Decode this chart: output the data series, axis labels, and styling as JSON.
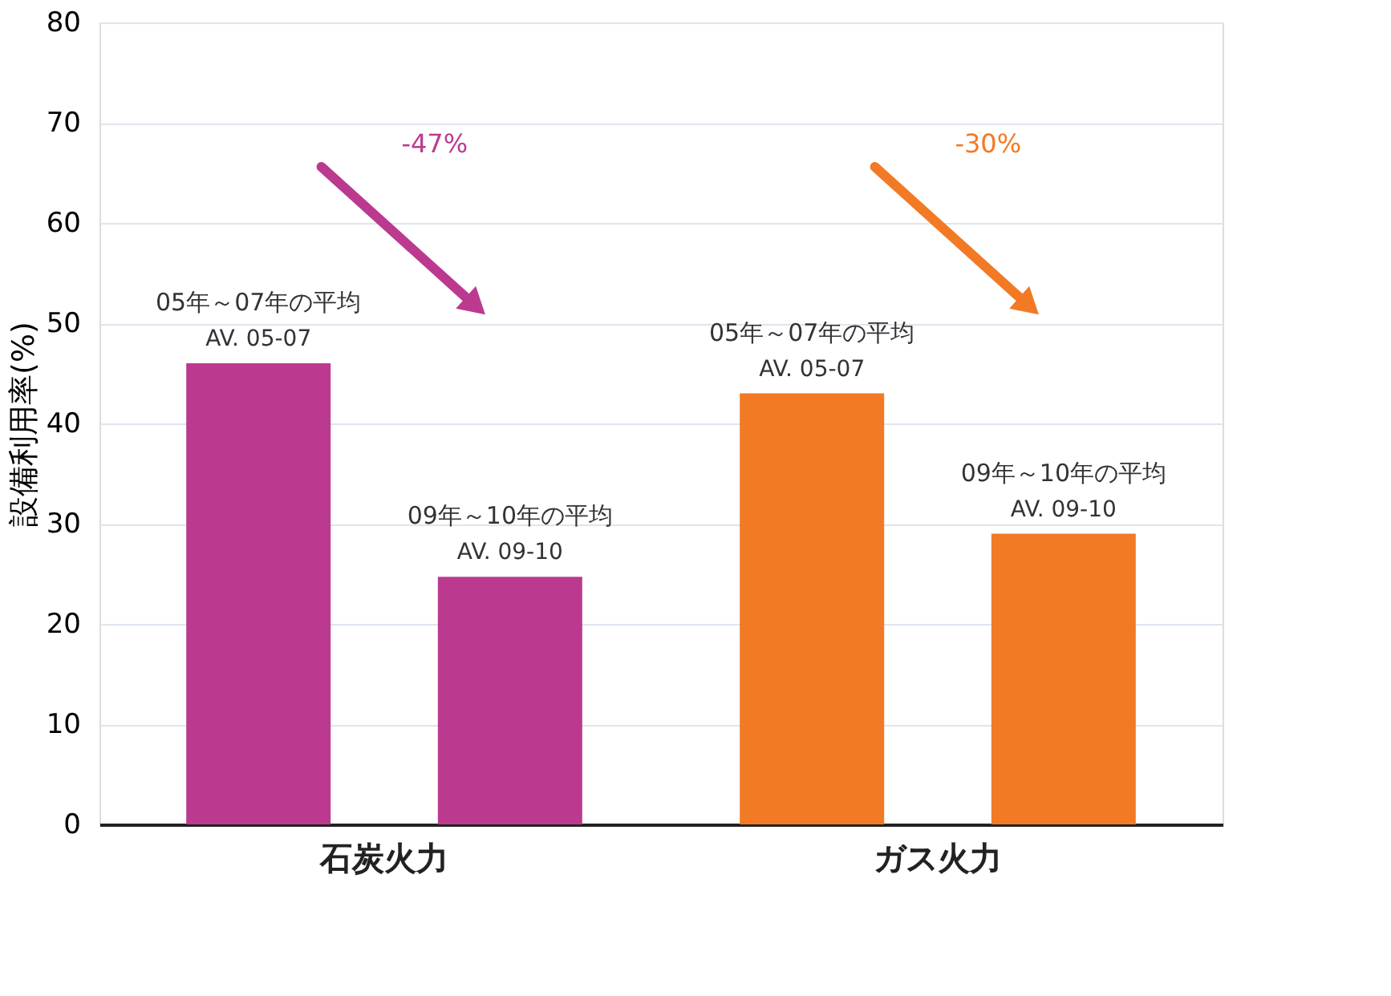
{
  "chart_data": {
    "type": "bar",
    "ylabel": "設備利用率(%)",
    "categories": [
      "石炭火力",
      "ガス火力"
    ],
    "series": [
      {
        "name": "AV. 05-07",
        "colors": [
          "#bb3a8f",
          "#f27a25"
        ],
        "values": [
          46,
          43
        ]
      },
      {
        "name": "AV. 09-10",
        "colors": [
          "#bb3a8f",
          "#f27a25"
        ],
        "values": [
          24.7,
          29
        ]
      }
    ],
    "ylim": [
      0,
      80
    ],
    "yticks": [
      0,
      10,
      20,
      30,
      40,
      50,
      60,
      70,
      80
    ],
    "grid": "y",
    "annotations": [
      "05年～07年の平均",
      "09年～10年の平均",
      "-47%",
      "-30%"
    ]
  }
}
